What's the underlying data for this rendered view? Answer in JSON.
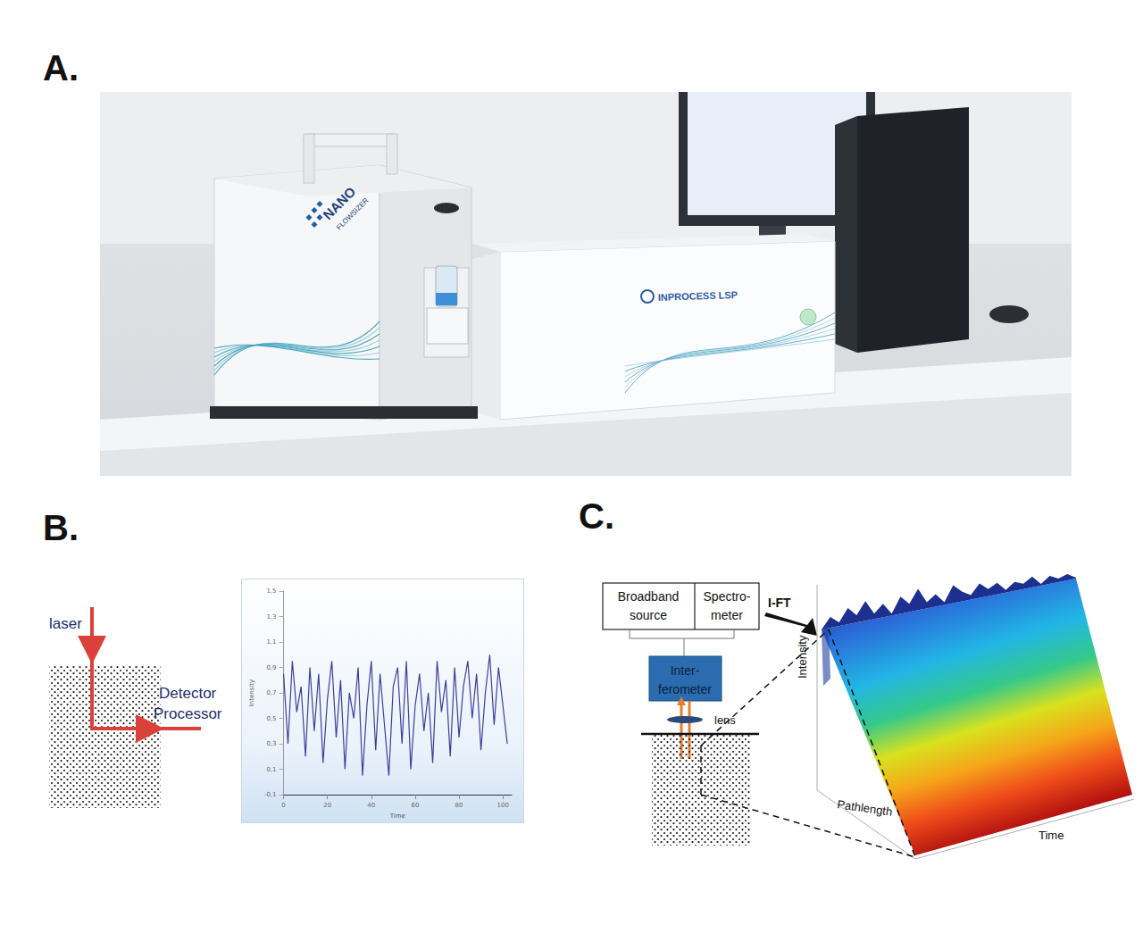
{
  "panels": {
    "a": {
      "label": "A.",
      "instruments": [
        {
          "brand": "NANO",
          "model": "FLOWSIZER"
        },
        {
          "brand": "INPROCESS LSP"
        }
      ]
    },
    "b": {
      "label": "B.",
      "diagram": {
        "source": "laser",
        "detector": [
          "Detector",
          "Processor"
        ]
      }
    },
    "c": {
      "label": "C.",
      "diagram": {
        "source": [
          "Broadband",
          "source"
        ],
        "spectrometer": [
          "Spectro-",
          "meter"
        ],
        "transform": "I-FT",
        "interferometer": [
          "Inter-",
          "ferometer"
        ],
        "lens": "lens",
        "plot": {
          "z_label": "Intensity",
          "x_label": "Pathlength",
          "y_label": "Time"
        }
      }
    }
  },
  "chart_data": {
    "type": "line",
    "x_label": "Time",
    "y_label": "Intensity",
    "x": [
      0,
      2,
      4,
      6,
      8,
      10,
      12,
      14,
      16,
      18,
      20,
      22,
      24,
      26,
      28,
      30,
      32,
      34,
      36,
      38,
      40,
      42,
      44,
      46,
      48,
      50,
      52,
      54,
      56,
      58,
      60,
      62,
      64,
      66,
      68,
      70,
      72,
      74,
      76,
      78,
      80,
      82,
      84,
      86,
      88,
      90,
      92,
      94,
      96,
      98,
      100,
      102
    ],
    "values": [
      0.85,
      0.3,
      0.95,
      0.55,
      0.75,
      0.2,
      0.9,
      0.4,
      0.85,
      0.15,
      0.65,
      0.95,
      0.35,
      0.8,
      0.1,
      0.7,
      0.5,
      0.9,
      0.05,
      0.6,
      0.95,
      0.25,
      0.85,
      0.45,
      0.05,
      0.75,
      0.9,
      0.3,
      0.95,
      0.1,
      0.6,
      0.85,
      0.4,
      0.7,
      0.15,
      0.95,
      0.55,
      0.8,
      0.2,
      0.9,
      0.35,
      0.75,
      0.95,
      0.5,
      0.85,
      0.25,
      0.7,
      1.0,
      0.45,
      0.9,
      0.6,
      0.3
    ],
    "color": "#3b3f9e",
    "xlim": [
      0,
      104
    ],
    "xticks": [
      0,
      20,
      40,
      60,
      80,
      100
    ],
    "ylim": [
      -0.1,
      1.5
    ],
    "yticks": [
      {
        "value": -0.1,
        "label": "-0,1"
      },
      {
        "value": 0.1,
        "label": "0,1"
      },
      {
        "value": 0.3,
        "label": "0,3"
      },
      {
        "value": 0.5,
        "label": "0,5"
      },
      {
        "value": 0.7,
        "label": "0,7"
      },
      {
        "value": 0.9,
        "label": "0,9"
      },
      {
        "value": 1.1,
        "label": "1,1"
      },
      {
        "value": 1.3,
        "label": "1,3"
      },
      {
        "value": 1.5,
        "label": "1,5"
      }
    ],
    "grid": false
  }
}
